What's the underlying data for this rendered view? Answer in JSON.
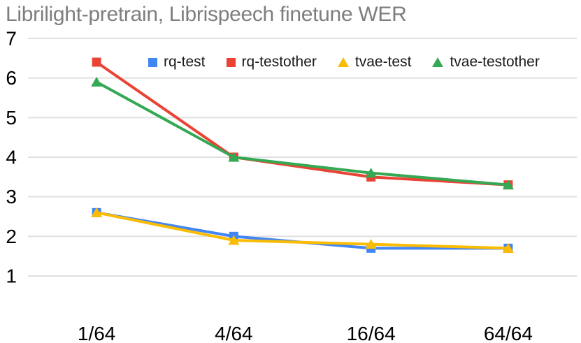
{
  "chart_data": {
    "type": "line",
    "title": "Librilight-pretrain, Librispeech finetune WER",
    "categories": [
      "1/64",
      "4/64",
      "16/64",
      "64/64"
    ],
    "series": [
      {
        "name": "rq-test",
        "color": "#4285F4",
        "marker": "square",
        "values": [
          2.6,
          2.0,
          1.7,
          1.7
        ]
      },
      {
        "name": "rq-testother",
        "color": "#EA4335",
        "marker": "square",
        "values": [
          6.4,
          4.0,
          3.5,
          3.3
        ]
      },
      {
        "name": "tvae-test",
        "color": "#FBBC04",
        "marker": "triangle",
        "values": [
          2.6,
          1.9,
          1.8,
          1.7
        ]
      },
      {
        "name": "tvae-testother",
        "color": "#34A853",
        "marker": "triangle",
        "values": [
          5.9,
          4.0,
          3.6,
          3.3
        ]
      }
    ],
    "xlabel": "",
    "ylabel": "",
    "yticks": [
      1,
      2,
      3,
      4,
      5,
      6,
      7
    ],
    "ylim": [
      1,
      7
    ],
    "grid": true,
    "legend_position": "top",
    "gridline_color": "#E0E0E0",
    "title_color": "#7E7E7E",
    "tick_label_color": "#000000",
    "legend_text_color": "#1A1A1A",
    "background_color": "#FFFFFF"
  }
}
